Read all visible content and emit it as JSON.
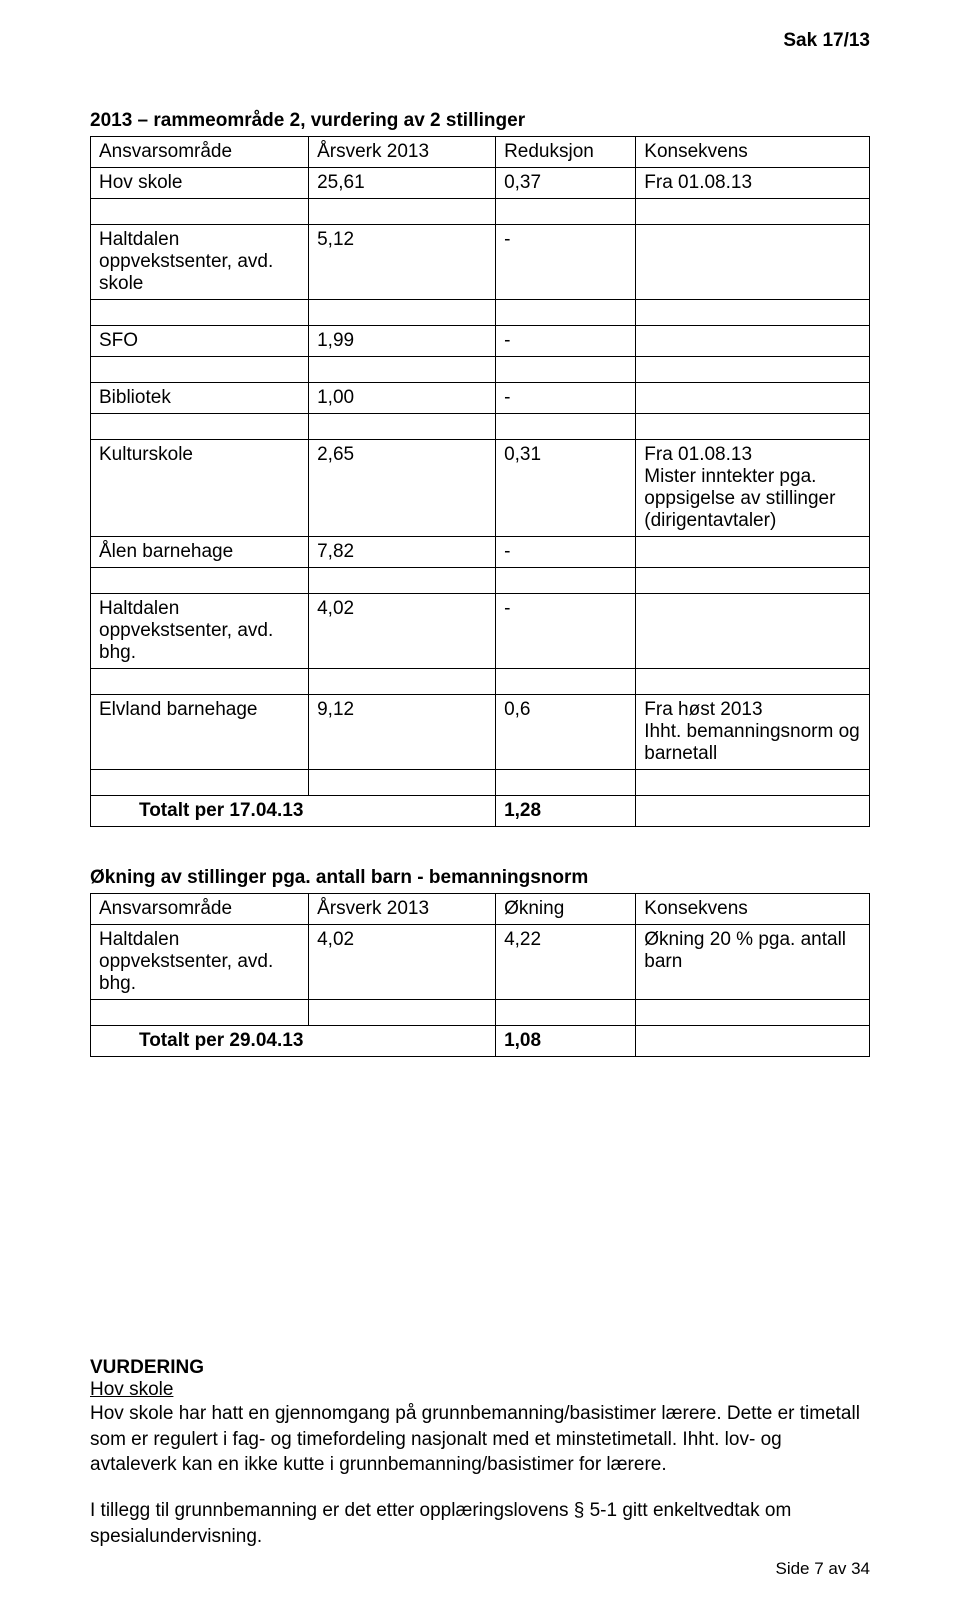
{
  "header": {
    "caseNumber": "Sak 17/13"
  },
  "section1": {
    "title": "2013 – rammeområde 2, vurdering av 2 stillinger",
    "headers": [
      "Ansvarsområde",
      "Årsverk 2013",
      "Reduksjon",
      "Konsekvens"
    ],
    "rows": [
      {
        "c1": "Hov skole",
        "c2": "25,61",
        "c3": "0,37",
        "c4": "Fra 01.08.13"
      },
      {
        "empty": true
      },
      {
        "c1": "Haltdalen oppvekstsenter, avd. skole",
        "c2": "5,12",
        "c3": "-",
        "c4": ""
      },
      {
        "empty": true
      },
      {
        "c1": "SFO",
        "c2": "1,99",
        "c3": "-",
        "c4": ""
      },
      {
        "empty": true
      },
      {
        "c1": "Bibliotek",
        "c2": "1,00",
        "c3": "-",
        "c4": ""
      },
      {
        "empty": true
      },
      {
        "c1": "Kulturskole",
        "c2": "2,65",
        "c3": "0,31",
        "c4": "Fra 01.08.13\nMister inntekter pga. oppsigelse av stillinger (dirigentavtaler)"
      },
      {
        "c1": "Ålen barnehage",
        "c2": "7,82",
        "c3": "-",
        "c4": ""
      },
      {
        "empty": true
      },
      {
        "c1": "Haltdalen oppvekstsenter, avd. bhg.",
        "c2": "4,02",
        "c3": "-",
        "c4": ""
      },
      {
        "empty": true
      },
      {
        "c1": "Elvland barnehage",
        "c2": "9,12",
        "c3": "0,6",
        "c4": "Fra høst 2013\nIhht. bemanningsnorm og barnetall"
      },
      {
        "empty": true
      },
      {
        "c1": "Totalt per 17.04.13",
        "c3": "1,28",
        "bold": true,
        "indent": true
      }
    ]
  },
  "section2": {
    "title": "Økning av stillinger pga. antall barn - bemanningsnorm",
    "headers": [
      "Ansvarsområde",
      "Årsverk 2013",
      "Økning",
      "Konsekvens"
    ],
    "rows": [
      {
        "c1": "Haltdalen oppvekstsenter, avd. bhg.",
        "c2": "4,02",
        "c3": "4,22",
        "c4": "Økning 20 % pga. antall barn"
      },
      {
        "empty": true
      },
      {
        "c1": "Totalt per 29.04.13",
        "c3": "1,08",
        "bold": true,
        "indent": true
      }
    ]
  },
  "vurdering": {
    "heading": "VURDERING",
    "subheading": "Hov skole",
    "para1": "Hov skole har hatt en gjennomgang på grunnbemanning/basistimer lærere. Dette er timetall som er regulert i fag- og timefordeling nasjonalt med et minstetimetall. Ihht. lov- og avtaleverk kan en ikke kutte i grunnbemanning/basistimer for lærere.",
    "para2": "I tillegg til grunnbemanning er det etter opplæringslovens § 5-1 gitt enkeltvedtak om spesialundervisning."
  },
  "footer": {
    "pageText": "Side 7 av 34"
  }
}
